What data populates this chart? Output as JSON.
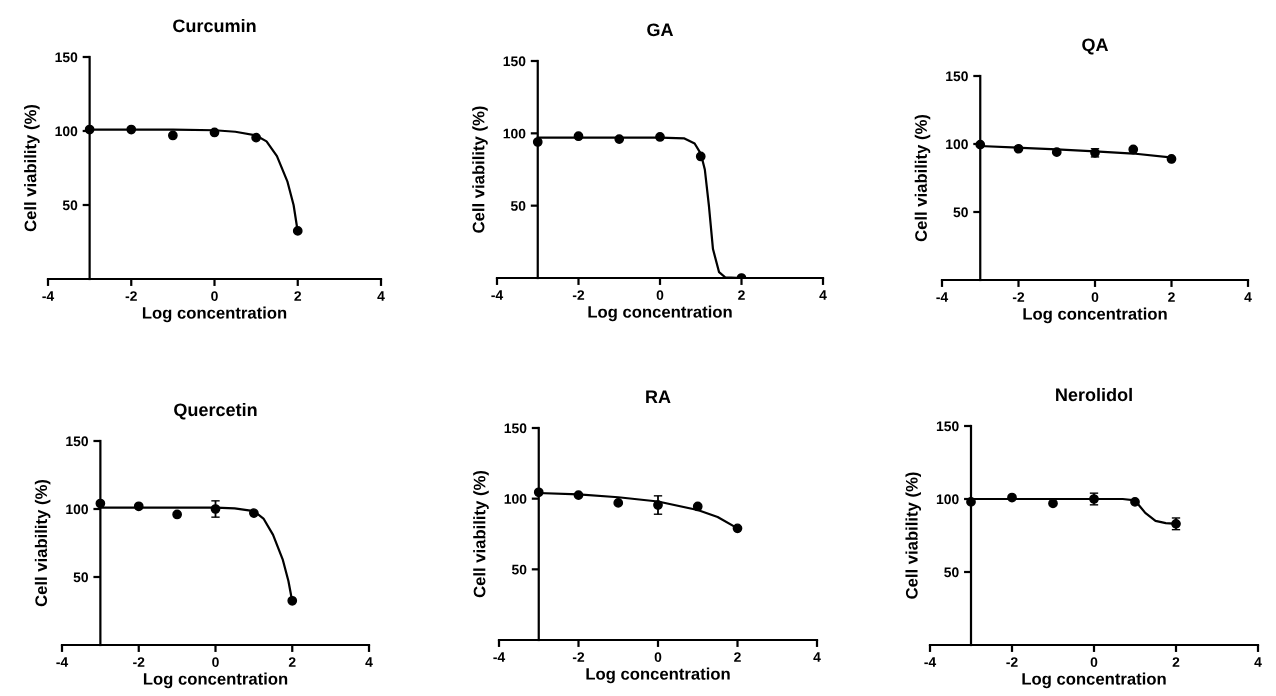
{
  "chart_data": [
    {
      "type": "scatter",
      "title": "Curcumin",
      "xlabel": "Log concentration",
      "ylabel": "Cell viability (%)",
      "xlim": [
        -4,
        4
      ],
      "xticks": [
        -4,
        -2,
        0,
        2,
        4
      ],
      "ylim": [
        0,
        150
      ],
      "yticks": [
        50,
        100,
        150
      ],
      "series": [
        {
          "marker": "circle",
          "color": "#000000",
          "x": [
            -3,
            -2,
            -1,
            0,
            1,
            2
          ],
          "values": [
            101,
            101,
            97,
            99,
            95.5,
            32.5
          ]
        },
        {
          "type": "line",
          "color": "#000000",
          "x": [
            -3,
            -1,
            0,
            0.5,
            1,
            1.25,
            1.5,
            1.75,
            1.9,
            2
          ],
          "values": [
            101,
            101,
            100.5,
            99.5,
            97,
            93,
            83,
            66,
            50,
            32
          ]
        }
      ]
    },
    {
      "type": "scatter",
      "title": "GA",
      "xlabel": "Log concentration",
      "ylabel": "Cell viability (%)",
      "xlim": [
        -4,
        4
      ],
      "xticks": [
        -4,
        -2,
        0,
        2,
        4
      ],
      "ylim": [
        0,
        150
      ],
      "yticks": [
        50,
        100,
        150
      ],
      "series": [
        {
          "marker": "circle",
          "color": "#000000",
          "x": [
            -3,
            -2,
            -1,
            0,
            1,
            2
          ],
          "values": [
            94,
            98,
            96,
            97.5,
            84,
            0
          ]
        },
        {
          "type": "line",
          "color": "#000000",
          "x": [
            -3,
            0,
            0.6,
            0.85,
            1,
            1.1,
            1.2,
            1.3,
            1.45,
            1.6,
            2
          ],
          "values": [
            97,
            97,
            96.5,
            93,
            86,
            75,
            50,
            20,
            4,
            0.5,
            0
          ]
        }
      ]
    },
    {
      "type": "scatter",
      "title": "QA",
      "xlabel": "Log concentration",
      "ylabel": "Cell viability (%)",
      "xlim": [
        -4,
        4
      ],
      "xticks": [
        -4,
        -2,
        0,
        2,
        4
      ],
      "ylim": [
        0,
        150
      ],
      "yticks": [
        50,
        100,
        150
      ],
      "series": [
        {
          "marker": "circle",
          "color": "#000000",
          "x": [
            -3,
            -2,
            -1,
            0,
            1,
            2
          ],
          "values": [
            99.5,
            96.5,
            94,
            93.5,
            96,
            89
          ],
          "errors": [
            null,
            null,
            null,
            3,
            null,
            null
          ]
        },
        {
          "type": "line",
          "color": "#000000",
          "x": [
            -3,
            -1,
            0,
            1,
            2
          ],
          "values": [
            98.5,
            96,
            94.5,
            93,
            90
          ]
        }
      ]
    },
    {
      "type": "scatter",
      "title": "Quercetin",
      "xlabel": "Log concentration",
      "ylabel": "Cell viability (%)",
      "xlim": [
        -4,
        4
      ],
      "xticks": [
        -4,
        -2,
        0,
        2,
        4
      ],
      "ylim": [
        0,
        150
      ],
      "yticks": [
        50,
        100,
        150
      ],
      "series": [
        {
          "marker": "circle",
          "color": "#000000",
          "x": [
            -3,
            -2,
            -1,
            0,
            1,
            2
          ],
          "values": [
            104,
            102,
            96,
            100,
            97,
            32.5
          ],
          "errors": [
            null,
            null,
            null,
            6,
            null,
            null
          ]
        },
        {
          "type": "line",
          "color": "#000000",
          "x": [
            -3,
            0,
            0.5,
            1,
            1.25,
            1.5,
            1.75,
            1.9,
            2
          ],
          "values": [
            101,
            101,
            100.5,
            98.5,
            93,
            81,
            63,
            47,
            32
          ]
        }
      ]
    },
    {
      "type": "scatter",
      "title": "RA",
      "xlabel": "Log concentration",
      "ylabel": "Cell viability (%)",
      "xlim": [
        -4,
        4
      ],
      "xticks": [
        -4,
        -2,
        0,
        2,
        4
      ],
      "ylim": [
        0,
        150
      ],
      "yticks": [
        50,
        100,
        150
      ],
      "series": [
        {
          "marker": "circle",
          "color": "#000000",
          "x": [
            -3,
            -2,
            -1,
            0,
            1,
            2
          ],
          "values": [
            104.5,
            102.5,
            97,
            95.5,
            94.5,
            79
          ],
          "errors": [
            null,
            null,
            null,
            6.5,
            null,
            null
          ]
        },
        {
          "type": "line",
          "color": "#000000",
          "x": [
            -3,
            -2,
            -1,
            0,
            1,
            1.5,
            2
          ],
          "values": [
            104,
            103,
            101,
            98,
            92,
            87,
            79
          ]
        }
      ]
    },
    {
      "type": "scatter",
      "title": "Nerolidol",
      "xlabel": "Log concentration",
      "ylabel": "Cell viability (%)",
      "xlim": [
        -4,
        4
      ],
      "xticks": [
        -4,
        -2,
        0,
        2,
        4
      ],
      "ylim": [
        0,
        150
      ],
      "yticks": [
        50,
        100,
        150
      ],
      "series": [
        {
          "marker": "circle",
          "color": "#000000",
          "x": [
            -3,
            -2,
            -1,
            0,
            1,
            2
          ],
          "values": [
            98,
            101,
            97,
            100,
            98,
            83
          ],
          "errors": [
            null,
            null,
            null,
            4,
            null,
            4
          ]
        },
        {
          "type": "line",
          "color": "#000000",
          "x": [
            -3,
            0,
            0.7,
            1,
            1.25,
            1.5,
            1.75,
            2
          ],
          "values": [
            100,
            100,
            100,
            99,
            90.5,
            85,
            83.5,
            83
          ]
        }
      ]
    }
  ]
}
